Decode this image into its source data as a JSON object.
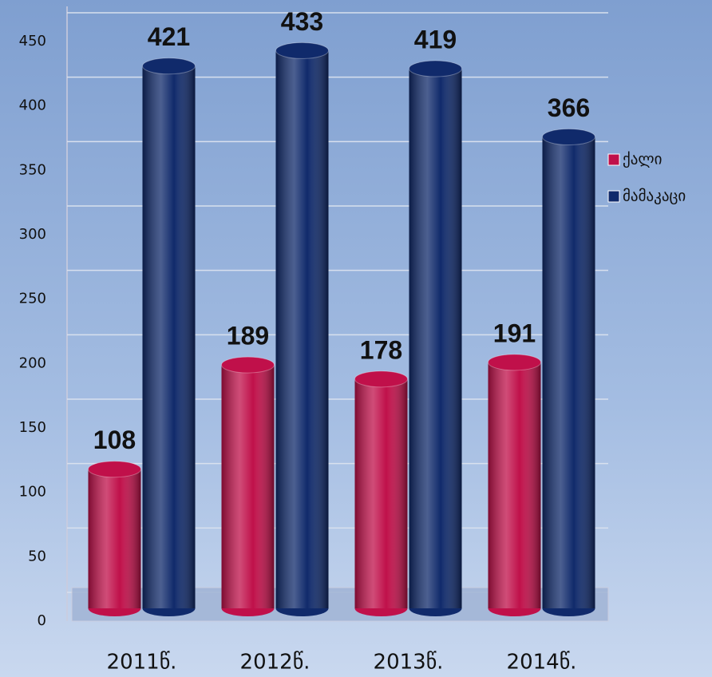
{
  "chart_data": {
    "type": "bar",
    "categories": [
      "2011წ.",
      "2012წ.",
      "2013წ.",
      "2014წ."
    ],
    "series": [
      {
        "name": "ქალი",
        "color": "#c0104a",
        "values": [
          108,
          189,
          178,
          191
        ]
      },
      {
        "name": "მამაკაცი",
        "color": "#102a6b",
        "values": [
          421,
          433,
          419,
          366
        ]
      }
    ],
    "ylim": [
      0,
      450
    ],
    "yticks": [
      0,
      50,
      100,
      150,
      200,
      250,
      300,
      350,
      400,
      450
    ],
    "grid": true,
    "legend": "right"
  }
}
